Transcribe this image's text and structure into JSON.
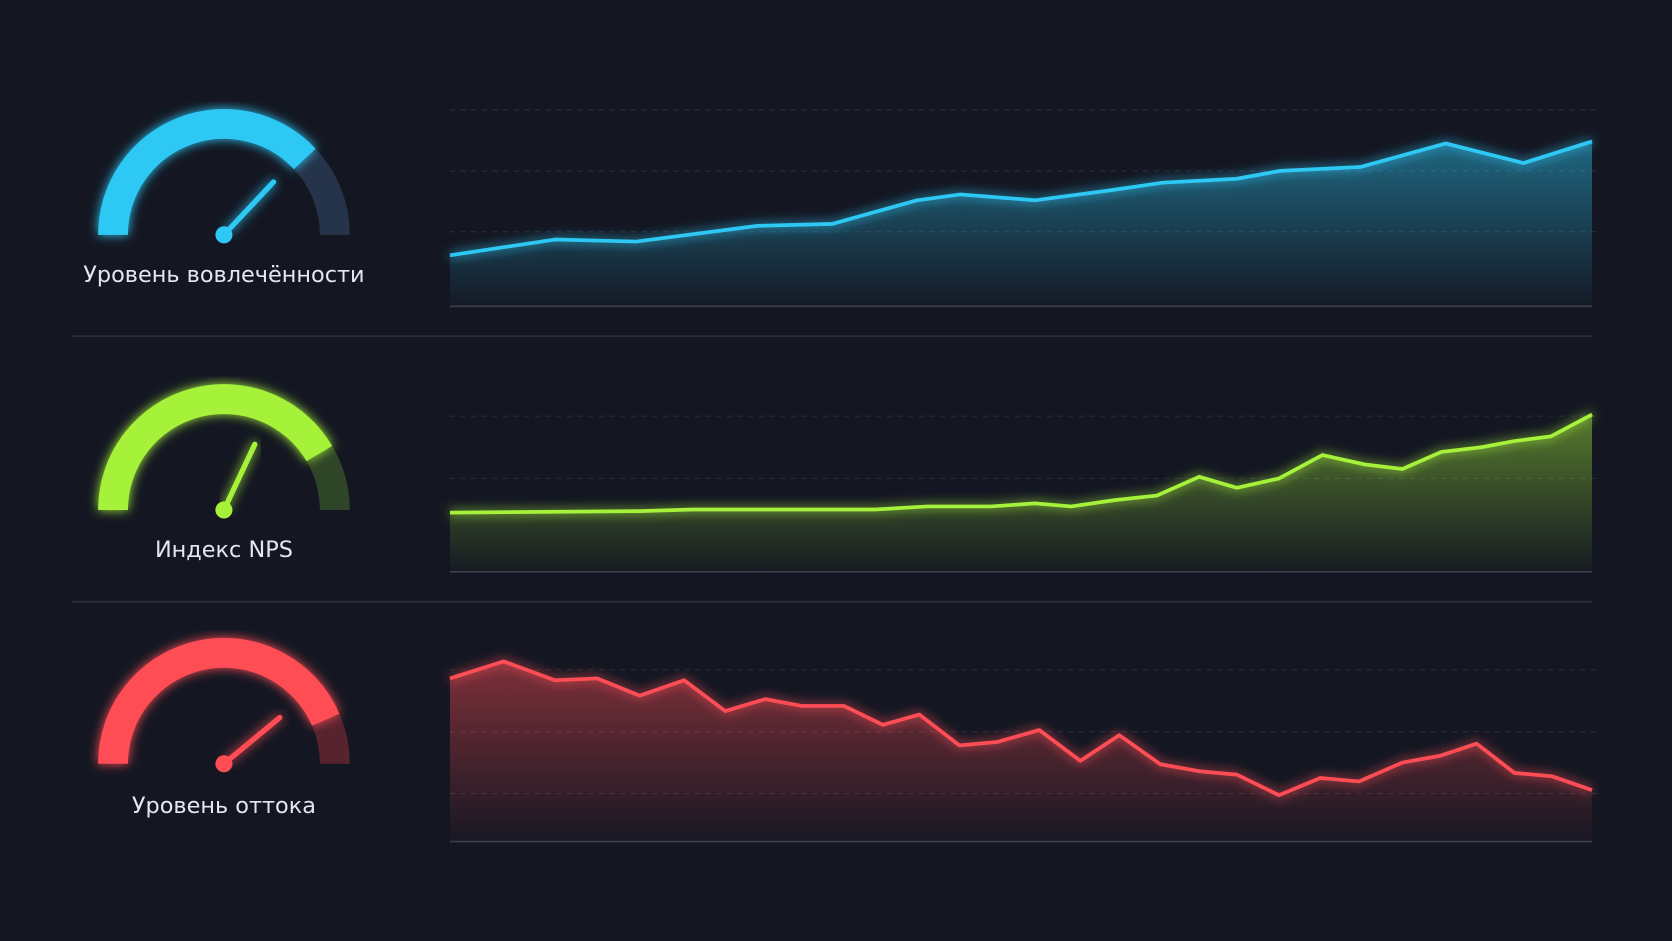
{
  "chart_data": [
    {
      "type": "area",
      "title": "Уровень вовлечённости",
      "color": "#2ec8f5",
      "track_color": "#25344a",
      "gauge": {
        "lim": [
          0,
          100
        ],
        "fill": 76,
        "needle": 74
      },
      "x": [
        0,
        9.2,
        16.3,
        26.9,
        33.5,
        40.9,
        44.7,
        51.2,
        57.7,
        62.4,
        68.9,
        72.7,
        79.7,
        87.2,
        94.0,
        100
      ],
      "values": [
        26,
        34,
        33,
        41,
        42,
        54,
        57,
        54,
        59,
        63,
        65,
        69,
        71,
        83,
        73,
        84
      ],
      "xlim": [
        0,
        100
      ],
      "ylim": [
        0,
        100
      ],
      "yticks": [
        38,
        69,
        100
      ],
      "grid": true
    },
    {
      "type": "area",
      "title": "Индекс NPS",
      "color": "#a6f23a",
      "track_color": "#2f4527",
      "gauge": {
        "lim": [
          0,
          100
        ],
        "fill": 83,
        "needle": 64
      },
      "x": [
        0,
        16.6,
        21.3,
        33.4,
        37.2,
        41.8,
        47.4,
        51.2,
        54.4,
        58.2,
        61.9,
        65.6,
        68.9,
        72.6,
        76.4,
        80.1,
        83.4,
        86.8,
        90.3,
        93.2,
        96.4,
        100
      ],
      "values": [
        38,
        39,
        40,
        40,
        40,
        42,
        42,
        44,
        42,
        46,
        49,
        61,
        54,
        60,
        75,
        69,
        66,
        77,
        80,
        84,
        87,
        101
      ],
      "xlim": [
        0,
        100
      ],
      "ylim": [
        0,
        100
      ],
      "yticks": [
        60,
        100
      ],
      "grid": true
    },
    {
      "type": "area",
      "title": "Уровень оттока",
      "color": "#ff4d55",
      "track_color": "#57232e",
      "gauge": {
        "lim": [
          0,
          100
        ],
        "fill": 87,
        "needle": 78
      },
      "x": [
        0,
        4.7,
        9.2,
        12.9,
        16.6,
        20.5,
        24.1,
        27.6,
        30.8,
        34.5,
        37.9,
        41.1,
        44.6,
        47.9,
        51.6,
        55.2,
        58.6,
        62.2,
        65.6,
        68.9,
        72.6,
        76.2,
        79.6,
        83.4,
        86.7,
        89.9,
        93.2,
        96.5,
        100
      ],
      "values": [
        95,
        105,
        94,
        95,
        85,
        94,
        76,
        83,
        79,
        79,
        68,
        74,
        56,
        58,
        65,
        47,
        62,
        45,
        41,
        39,
        27,
        37,
        35,
        46,
        50,
        57,
        40,
        38,
        30
      ],
      "xlim": [
        0,
        100
      ],
      "ylim": [
        0,
        100
      ],
      "yticks": [
        28,
        64,
        100
      ],
      "grid": true
    }
  ]
}
